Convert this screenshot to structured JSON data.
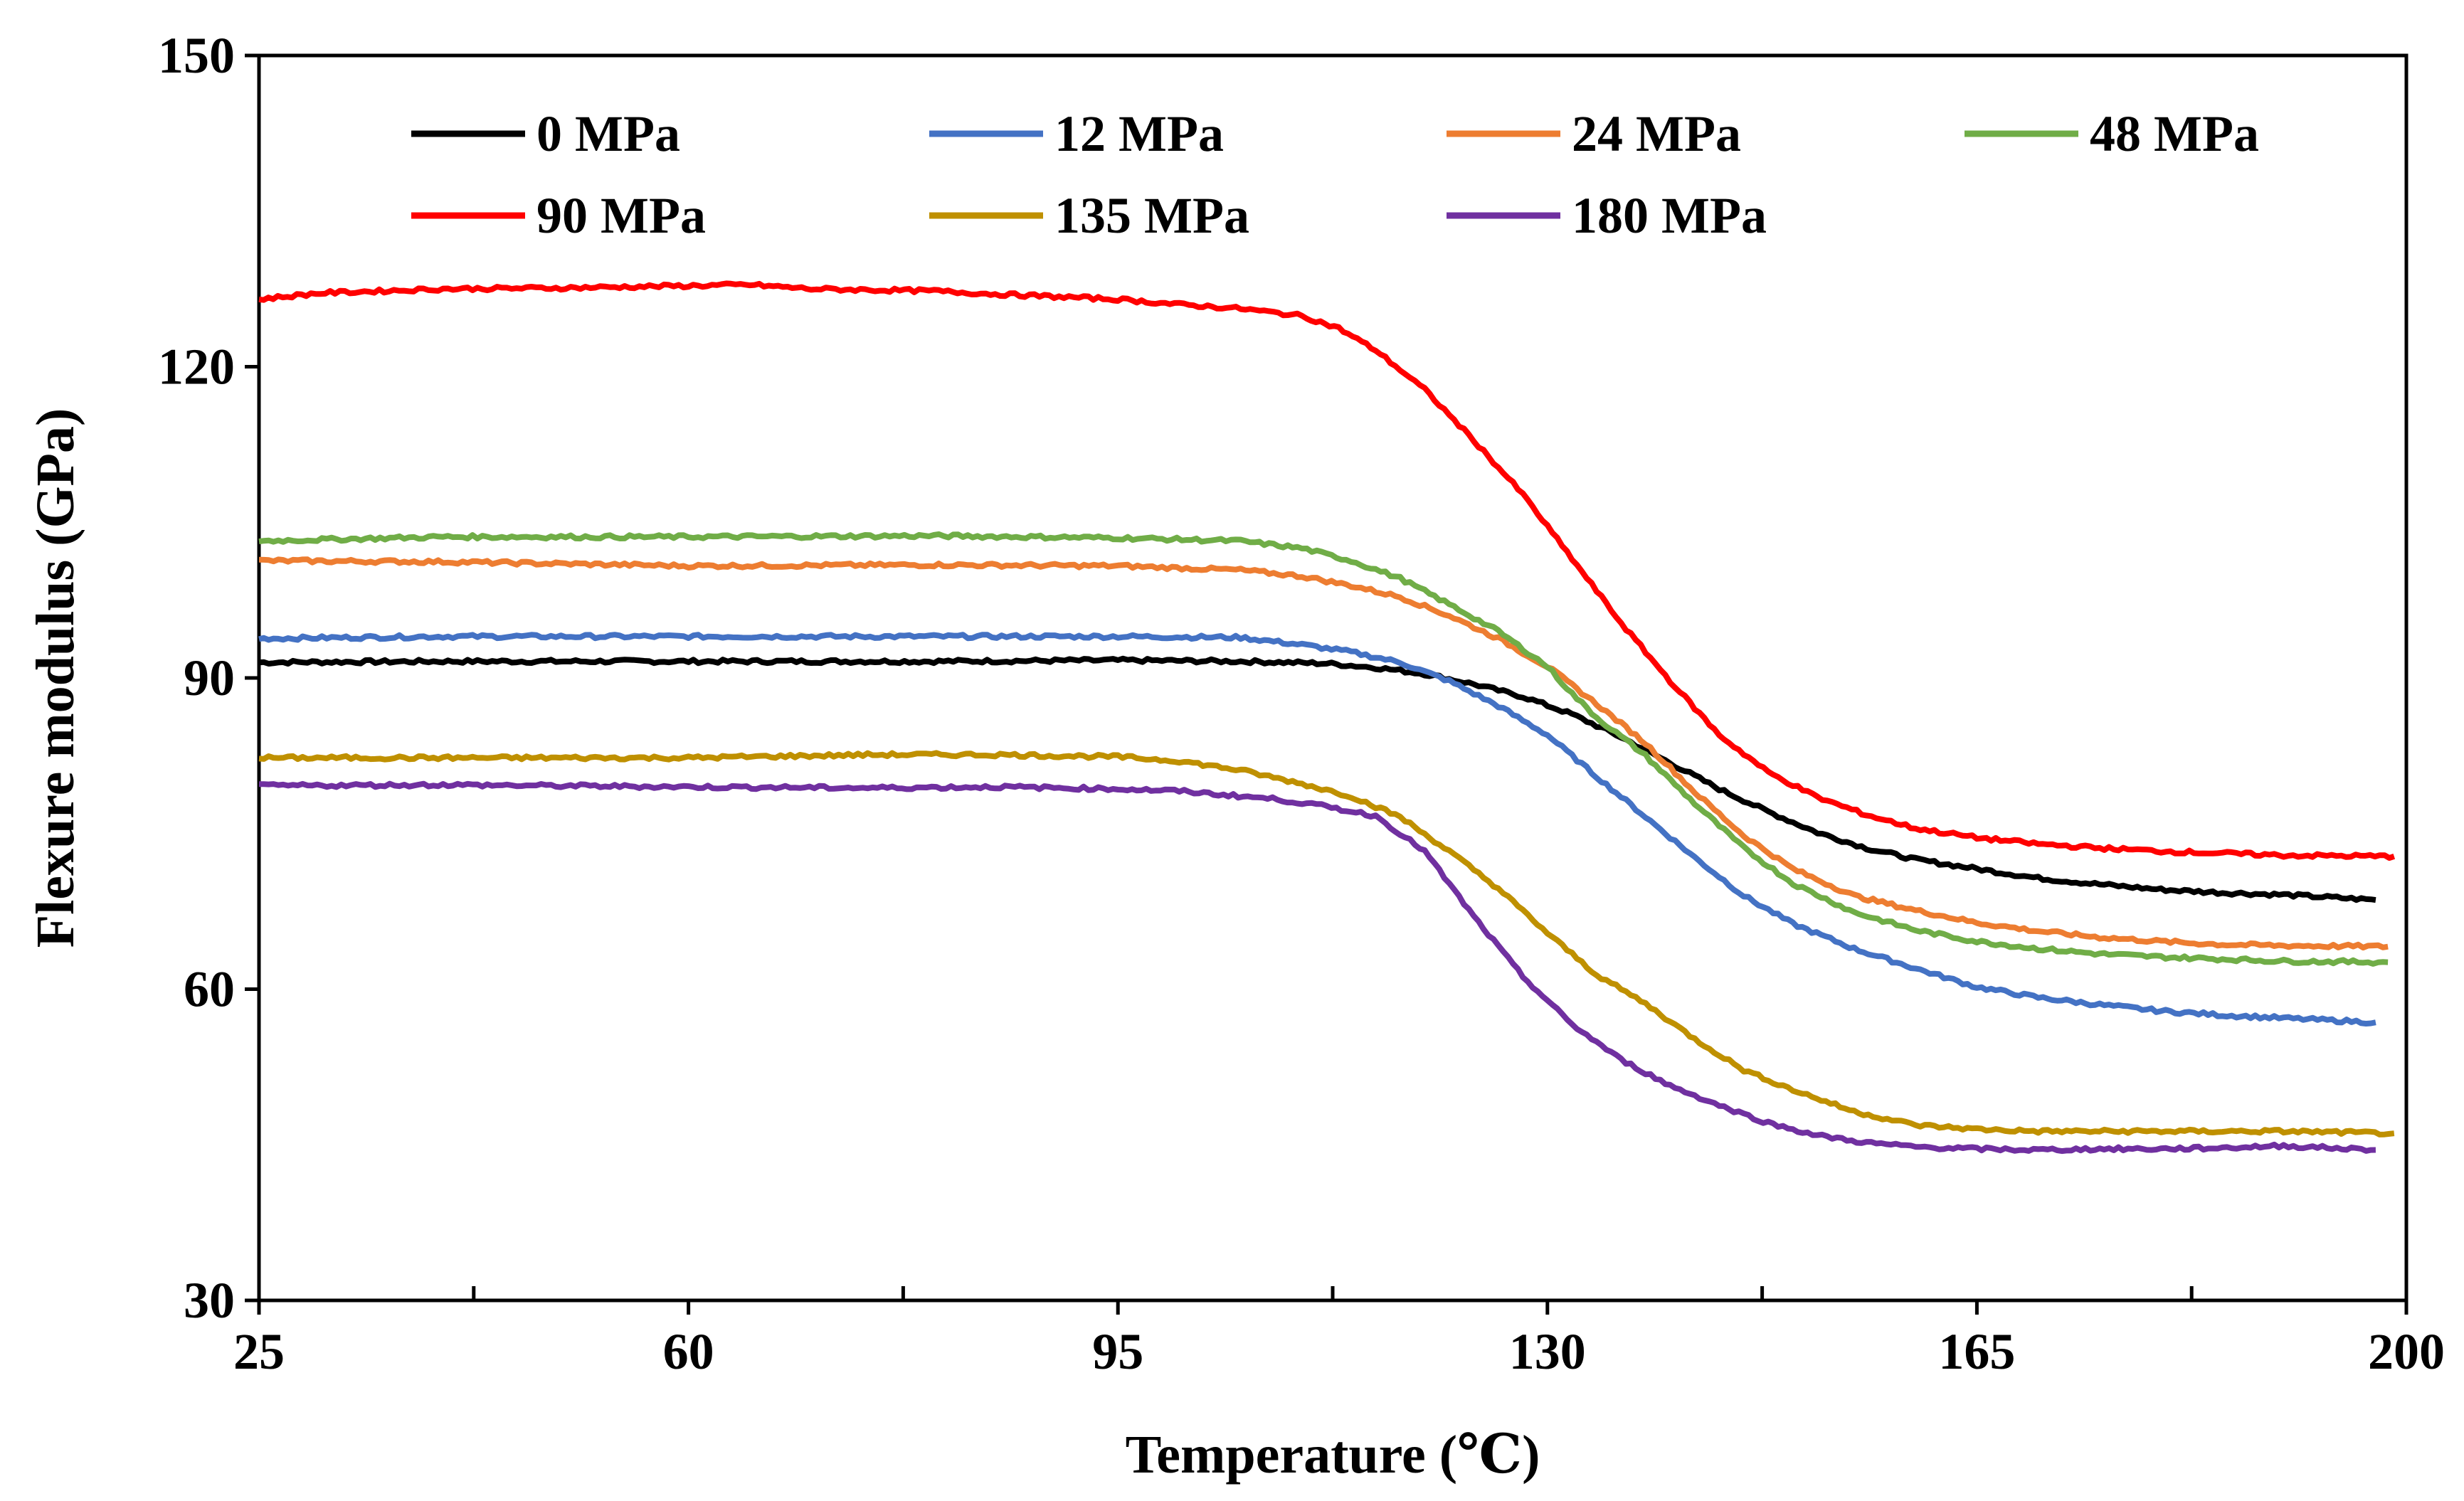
{
  "chart_data": {
    "type": "line",
    "title": "",
    "xlabel": "Temperature (℃)",
    "ylabel": "Flexure modulus (GPa)",
    "xlim": [
      25,
      200
    ],
    "ylim": [
      30,
      150
    ],
    "xticks": [
      25,
      60,
      95,
      130,
      165,
      200
    ],
    "xtick_labels": [
      "25",
      "60",
      "95",
      "130",
      "165",
      "200"
    ],
    "yticks": [
      30,
      60,
      90,
      120,
      150
    ],
    "ytick_labels": [
      "30",
      "60",
      "90",
      "120",
      "150"
    ],
    "x_minor_ticks": [
      42.5,
      77.5,
      112.5,
      147.5,
      182.5
    ],
    "grid": false,
    "legend_position": "top",
    "series": [
      {
        "name": "0 MPa",
        "color": "#000000",
        "x": [
          25,
          40,
          60,
          80,
          95,
          105,
          112,
          116,
          120,
          124,
          128,
          132,
          136,
          140,
          144,
          148,
          152,
          156,
          160,
          165,
          170,
          175,
          180,
          185,
          190,
          197.5
        ],
        "y": [
          91.5,
          91.6,
          91.6,
          91.6,
          91.7,
          91.6,
          91.4,
          91.0,
          90.4,
          89.4,
          88.2,
          86.5,
          84.3,
          81.8,
          79.3,
          77.1,
          75.1,
          73.6,
          72.5,
          71.6,
          70.7,
          70.1,
          69.6,
          69.3,
          69.1,
          68.6
        ]
      },
      {
        "name": "12 MPa",
        "color": "#4472C4",
        "x": [
          25,
          40,
          60,
          80,
          95,
          105,
          110,
          114,
          118,
          122,
          126,
          130,
          134,
          138,
          142,
          146,
          150,
          155,
          160,
          165,
          170,
          175,
          180,
          185,
          190,
          197.5
        ],
        "y": [
          93.8,
          94.0,
          94.0,
          94.0,
          94.0,
          93.9,
          93.2,
          92.5,
          91.5,
          89.7,
          87.3,
          84.5,
          80.5,
          76.6,
          72.7,
          69.0,
          66.3,
          63.9,
          62.0,
          60.2,
          59.2,
          58.5,
          57.9,
          57.5,
          57.2,
          56.8
        ]
      },
      {
        "name": "24 MPa",
        "color": "#ED7D31",
        "x": [
          25,
          40,
          60,
          80,
          95,
          105,
          110,
          114,
          118,
          122,
          126,
          130,
          134,
          138,
          142,
          146,
          150,
          155,
          160,
          165,
          170,
          175,
          180,
          185,
          190,
          198.5
        ],
        "y": [
          101.3,
          101.2,
          100.8,
          100.9,
          100.8,
          100.4,
          99.8,
          98.9,
          97.8,
          96.0,
          93.8,
          91.1,
          87.5,
          83.7,
          79.0,
          74.8,
          71.6,
          69.0,
          67.6,
          66.4,
          65.6,
          65.0,
          64.6,
          64.3,
          64.2,
          64.1
        ]
      },
      {
        "name": "48 MPa",
        "color": "#70AD47",
        "x": [
          25,
          40,
          60,
          80,
          95,
          105,
          110,
          114,
          118,
          122,
          126,
          130,
          132,
          134,
          138,
          142,
          146,
          150,
          155,
          160,
          165,
          170,
          175,
          180,
          185,
          190,
          198.5
        ],
        "y": [
          103.2,
          103.6,
          103.6,
          103.7,
          103.5,
          103.2,
          102.5,
          101.3,
          99.6,
          97.1,
          94.5,
          91.1,
          88.5,
          86.2,
          82.5,
          77.9,
          73.6,
          70.2,
          67.4,
          65.7,
          64.6,
          63.9,
          63.4,
          63.1,
          62.9,
          62.7,
          62.6
        ]
      },
      {
        "name": "90 MPa",
        "color": "#FF0000",
        "x": [
          25,
          30,
          40,
          50,
          60,
          65,
          70,
          80,
          85,
          95,
          100,
          105,
          110,
          113,
          116,
          120,
          124,
          128,
          132,
          136,
          140,
          144,
          148,
          152,
          156,
          160,
          165,
          170,
          175,
          180,
          185,
          190,
          199
        ],
        "y": [
          126.5,
          127.1,
          127.5,
          127.6,
          127.8,
          127.9,
          127.5,
          127.3,
          127.0,
          126.5,
          126.0,
          125.6,
          124.9,
          123.7,
          121.6,
          117.8,
          112.9,
          107.7,
          101.5,
          95.3,
          89.7,
          84.5,
          80.9,
          78.5,
          76.8,
          75.5,
          74.6,
          74.0,
          73.6,
          73.3,
          73.1,
          72.9,
          72.8
        ]
      },
      {
        "name": "135 MPa",
        "color": "#BF9000",
        "x": [
          25,
          40,
          60,
          75,
          85,
          95,
          100,
          105,
          110,
          114,
          118,
          122,
          126,
          130,
          134,
          138,
          142,
          146,
          150,
          155,
          160,
          165,
          170,
          175,
          180,
          185,
          190,
          199
        ],
        "y": [
          82.3,
          82.3,
          82.3,
          82.6,
          82.6,
          82.4,
          82.0,
          81.1,
          79.8,
          78.6,
          76.6,
          73.3,
          69.7,
          65.4,
          61.4,
          58.6,
          55.2,
          52.2,
          50.3,
          48.2,
          46.9,
          46.5,
          46.3,
          46.3,
          46.3,
          46.3,
          46.3,
          46.1
        ]
      },
      {
        "name": "180 MPa",
        "color": "#7030A0",
        "x": [
          25,
          40,
          60,
          75,
          85,
          95,
          100,
          104,
          108,
          112,
          116,
          120,
          124,
          128,
          132,
          136,
          140,
          144,
          148,
          152,
          156,
          160,
          165,
          170,
          175,
          180,
          185,
          190,
          197.5
        ],
        "y": [
          79.6,
          79.7,
          79.5,
          79.4,
          79.5,
          79.3,
          79.1,
          78.7,
          78.3,
          77.6,
          76.7,
          73.3,
          67.0,
          61.2,
          56.6,
          53.2,
          50.7,
          48.8,
          47.1,
          45.9,
          45.2,
          44.8,
          44.6,
          44.5,
          44.6,
          44.6,
          44.7,
          44.9,
          44.5
        ]
      }
    ]
  }
}
